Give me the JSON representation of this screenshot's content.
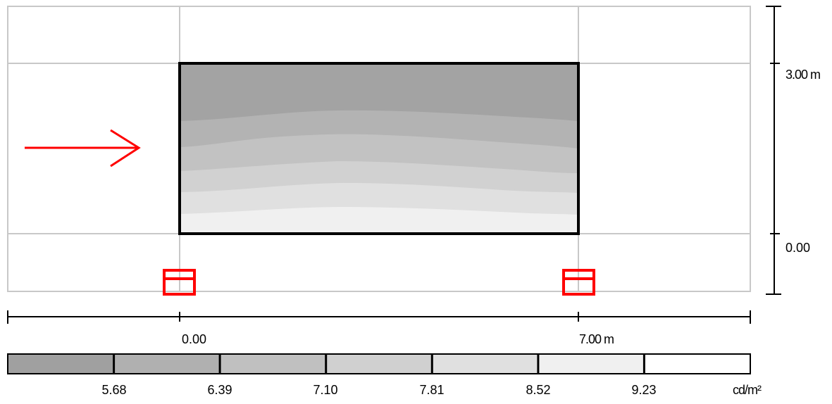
{
  "scale_x": {
    "labels": [
      "0.00",
      "7.00 m"
    ]
  },
  "scale_y": {
    "labels": [
      "3.00 m",
      "0.00"
    ]
  },
  "legend": {
    "colors": [
      "#a0a0a0",
      "#b0b0b0",
      "#c0c0c0",
      "#d0d0d0",
      "#e0e0e0",
      "#f0f0f0",
      "#ffffff"
    ],
    "values": [
      "5.68",
      "6.39",
      "7.10",
      "7.81",
      "8.52",
      "9.23"
    ],
    "unit": "cd/m²"
  },
  "contour_colors": [
    "#a3a3a3",
    "#b3b3b3",
    "#c2c2c2",
    "#d1d1d1",
    "#e0e0e0",
    "#f0f0f0"
  ],
  "colors": {
    "grid": "#c8c8c8",
    "marker": "#ff0000",
    "outline": "#000000"
  }
}
